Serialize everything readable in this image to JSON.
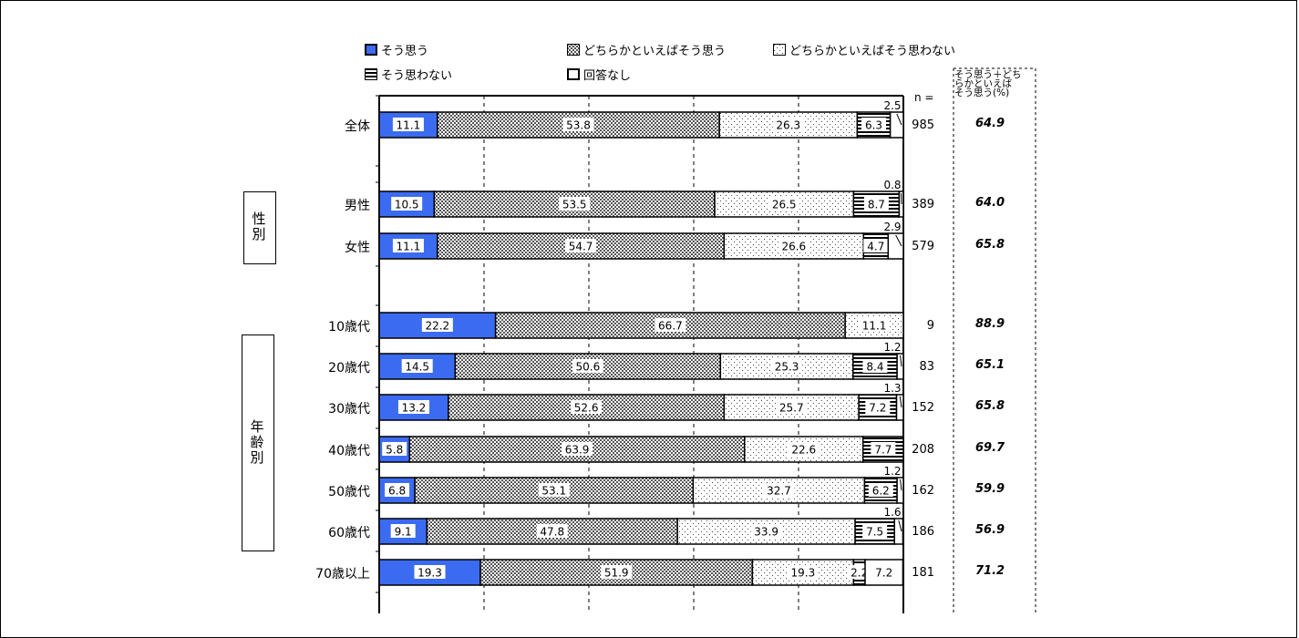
{
  "chart_data": {
    "type": "bar",
    "stacked": true,
    "orientation": "horizontal",
    "x_range": [
      0,
      100
    ],
    "series": [
      {
        "name": "そう思う",
        "color": "#3b6bf0",
        "pattern": "solid"
      },
      {
        "name": "どちらかといえばそう思う",
        "color": "#888888",
        "pattern": "checker"
      },
      {
        "name": "どちらかといえばそう思わない",
        "color": "#ffffff",
        "pattern": "dots"
      },
      {
        "name": "そう思わない",
        "color": "#000000",
        "pattern": "hstripes"
      },
      {
        "name": "回答なし",
        "color": "#ffffff",
        "pattern": "none"
      }
    ],
    "rows": [
      {
        "label": "全体",
        "values": [
          11.1,
          53.8,
          26.3,
          6.3,
          2.5
        ],
        "n": "985",
        "sum": "64.9",
        "gap_before": false
      },
      {
        "label": "男性",
        "values": [
          10.5,
          53.5,
          26.5,
          8.7,
          0.8
        ],
        "n": "389",
        "sum": "64.0",
        "gap_before": true
      },
      {
        "label": "女性",
        "values": [
          11.1,
          54.7,
          26.6,
          4.7,
          2.9
        ],
        "n": "579",
        "sum": "65.8",
        "gap_before": false
      },
      {
        "label": "10歳代",
        "values": [
          22.2,
          66.7,
          11.1,
          0,
          0
        ],
        "n": "9",
        "sum": "88.9",
        "gap_before": true
      },
      {
        "label": "20歳代",
        "values": [
          14.5,
          50.6,
          25.3,
          8.4,
          1.2
        ],
        "n": "83",
        "sum": "65.1",
        "gap_before": false
      },
      {
        "label": "30歳代",
        "values": [
          13.2,
          52.6,
          25.7,
          7.2,
          1.3
        ],
        "n": "152",
        "sum": "65.8",
        "gap_before": false
      },
      {
        "label": "40歳代",
        "values": [
          5.8,
          63.9,
          22.6,
          7.7,
          0
        ],
        "n": "208",
        "sum": "69.7",
        "gap_before": false
      },
      {
        "label": "50歳代",
        "values": [
          6.8,
          53.1,
          32.7,
          6.2,
          1.2
        ],
        "n": "162",
        "sum": "59.9",
        "gap_before": false
      },
      {
        "label": "60歳代",
        "values": [
          9.1,
          47.8,
          33.9,
          7.5,
          1.6
        ],
        "n": "186",
        "sum": "56.9",
        "gap_before": false
      },
      {
        "label": "70歳以上",
        "values": [
          19.3,
          51.9,
          19.3,
          2.2,
          7.2
        ],
        "n": "181",
        "sum": "71.2",
        "gap_before": false
      }
    ],
    "data_labels": [
      [
        "11.1",
        "53.8",
        "26.3",
        "6.3",
        "2.5"
      ],
      [
        "10.5",
        "53.5",
        "26.5",
        "8.7",
        "0.8"
      ],
      [
        "11.1",
        "54.7",
        "26.6",
        "4.7",
        "2.9"
      ],
      [
        "22.2",
        "66.7",
        "11.1",
        "",
        ""
      ],
      [
        "14.5",
        "50.6",
        "25.3",
        "8.4",
        "1.2"
      ],
      [
        "13.2",
        "52.6",
        "25.7",
        "7.2",
        "1.3"
      ],
      [
        "5.8",
        "63.9",
        "22.6",
        "7.7",
        ""
      ],
      [
        "6.8",
        "53.1",
        "32.7",
        "6.2",
        "1.2"
      ],
      [
        "9.1",
        "47.8",
        "33.9",
        "7.5",
        "1.6"
      ],
      [
        "19.3",
        "51.9",
        "19.3",
        "2.2",
        "7.2"
      ]
    ],
    "n_header": "n =",
    "sum_header": [
      "そう思う＋どち",
      "らかといえば",
      "そう思う(%)"
    ],
    "groups": [
      {
        "label": "性\n別"
      },
      {
        "label": "年\n齢\n別"
      }
    ],
    "grid": true
  }
}
